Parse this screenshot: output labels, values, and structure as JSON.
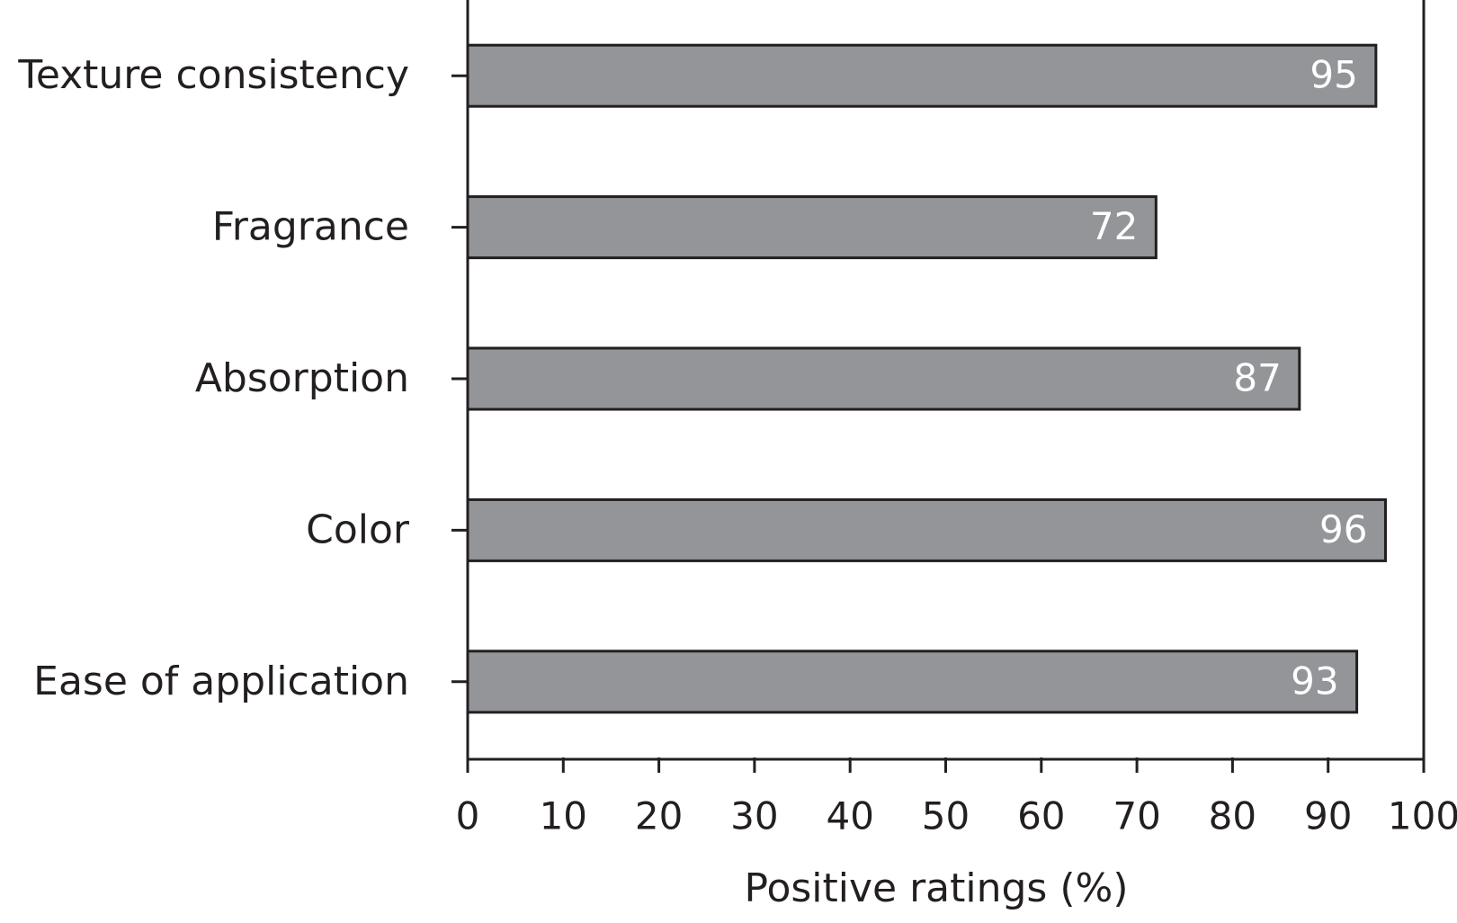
{
  "chart_data": {
    "type": "barh",
    "categories": [
      "Texture consistency",
      "Fragrance",
      "Absorption",
      "Color",
      "Ease of application"
    ],
    "values": [
      95,
      72,
      87,
      96,
      93
    ],
    "color": "#939598",
    "x_label": "Positive ratings (%)",
    "xlim": [
      0,
      100
    ],
    "xticks": [
      0,
      10,
      20,
      30,
      40,
      50,
      60,
      70,
      80,
      90,
      100
    ]
  }
}
